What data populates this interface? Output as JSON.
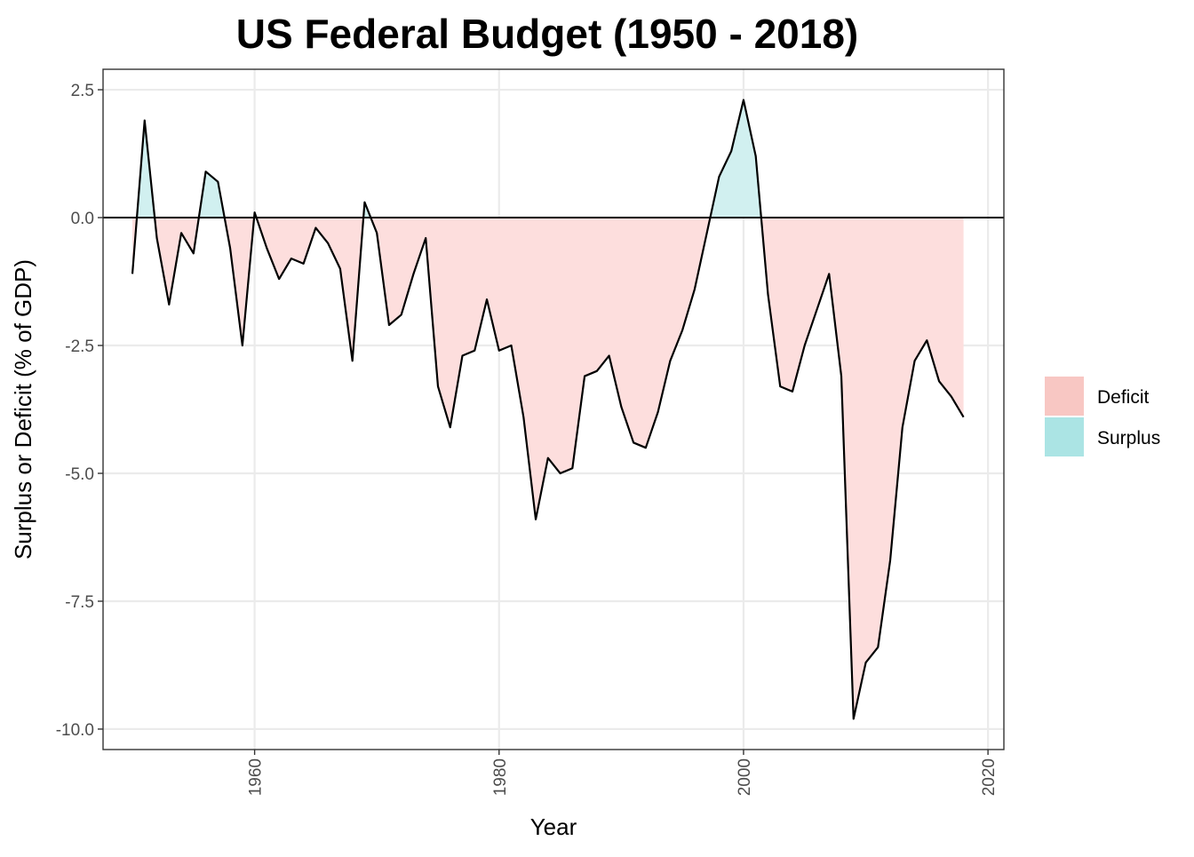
{
  "chart_data": {
    "type": "area",
    "title": "US Federal Budget (1950 - 2018)",
    "xlabel": "Year",
    "ylabel": "Surplus or Deficit (% of GDP)",
    "xlim": [
      1947.6,
      2021.3
    ],
    "ylim": [
      -10.4,
      2.9
    ],
    "x_ticks": [
      1960,
      1980,
      2000,
      2020
    ],
    "x_tick_labels": [
      "1960",
      "1980",
      "2000",
      "2020"
    ],
    "y_ticks": [
      2.5,
      0,
      -2.5,
      -5,
      -7.5,
      -10
    ],
    "y_tick_labels": [
      "2.5",
      "0.0",
      "-2.5",
      "-5.0",
      "-7.5",
      "-10.0"
    ],
    "grid": true,
    "zero_reference_line": true,
    "legend": {
      "placement": "right",
      "entries": [
        {
          "name": "Deficit",
          "color": "#f8c7c3"
        },
        {
          "name": "Surplus",
          "color": "#abe4e4"
        }
      ]
    },
    "colors": {
      "deficit_fill": "#fddedd",
      "surplus_fill": "#d1f0f0",
      "line": "#000000"
    },
    "series": [
      {
        "x": [
          1950,
          1951,
          1952,
          1953,
          1954,
          1955,
          1956,
          1957,
          1958,
          1959,
          1960,
          1961,
          1962,
          1963,
          1964,
          1965,
          1966,
          1967,
          1968,
          1969,
          1970,
          1971,
          1972,
          1973,
          1974,
          1975,
          1976,
          1977,
          1978,
          1979,
          1980,
          1981,
          1982,
          1983,
          1984,
          1985,
          1986,
          1987,
          1988,
          1989,
          1990,
          1991,
          1992,
          1993,
          1994,
          1995,
          1996,
          1997,
          1998,
          1999,
          2000,
          2001,
          2002,
          2003,
          2004,
          2005,
          2006,
          2007,
          2008,
          2009,
          2010,
          2011,
          2012,
          2013,
          2014,
          2015,
          2016,
          2017,
          2018
        ],
        "values": [
          -1.1,
          1.9,
          -0.4,
          -1.7,
          -0.3,
          -0.7,
          0.9,
          0.7,
          -0.6,
          -2.5,
          0.1,
          -0.6,
          -1.2,
          -0.8,
          -0.9,
          -0.2,
          -0.5,
          -1.0,
          -2.8,
          0.3,
          -0.3,
          -2.1,
          -1.9,
          -1.1,
          -0.4,
          -3.3,
          -4.1,
          -2.7,
          -2.6,
          -1.6,
          -2.6,
          -2.5,
          -3.9,
          -5.9,
          -4.7,
          -5.0,
          -4.9,
          -3.1,
          -3.0,
          -2.7,
          -3.7,
          -4.4,
          -4.5,
          -3.8,
          -2.8,
          -2.2,
          -1.4,
          -0.3,
          0.8,
          1.3,
          2.3,
          1.2,
          -1.5,
          -3.3,
          -3.4,
          -2.5,
          -1.8,
          -1.1,
          -3.1,
          -9.8,
          -8.7,
          -8.4,
          -6.7,
          -4.1,
          -2.8,
          -2.4,
          -3.2,
          -3.5,
          -3.9
        ]
      }
    ]
  }
}
